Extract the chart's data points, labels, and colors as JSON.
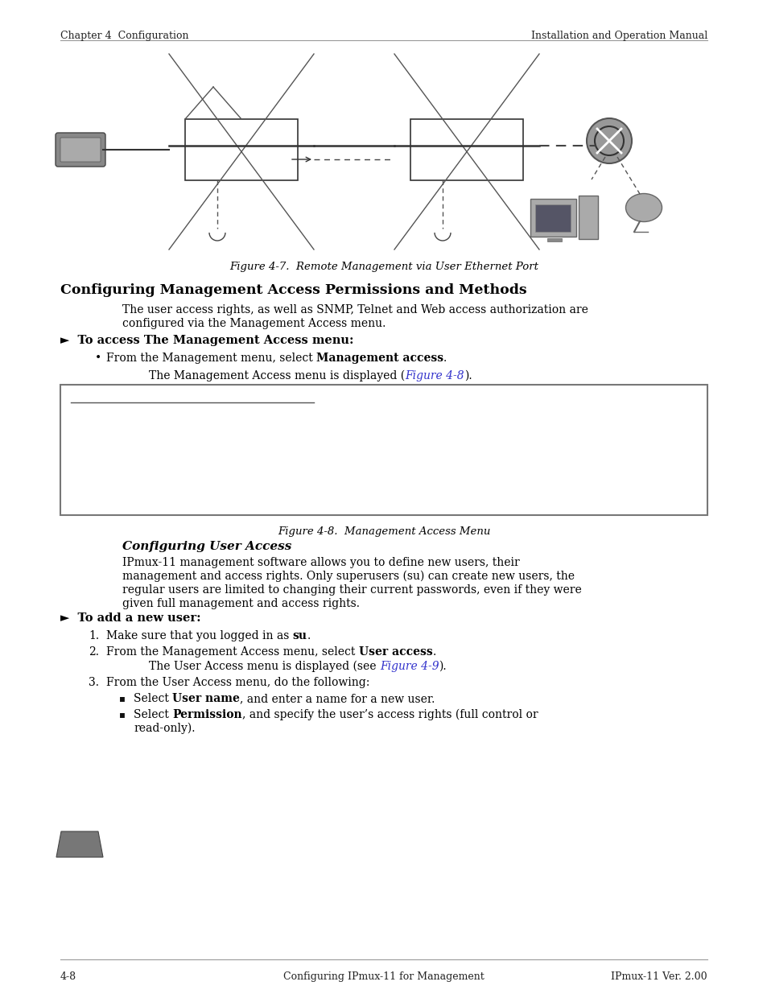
{
  "page_bg": "#ffffff",
  "header_left": "Chapter 4  Configuration",
  "header_right": "Installation and Operation Manual",
  "footer_left": "4-8",
  "footer_center": "Configuring IPmux-11 for Management",
  "footer_right": "IPmux-11 Ver. 2.00",
  "fig_caption_1": "Figure 4-7.  Remote Management via User Ethernet Port",
  "section_title": "Configuring Management Access Permissions and Methods",
  "para1_line1": "The user access rights, as well as SNMP, Telnet and Web access authorization are",
  "para1_line2": "configured via the Management Access menu.",
  "arrow_label": "►  To access The Management Access menu:",
  "fig_caption_2": "Figure 4-8.  Management Access Menu",
  "sub_section_title": "Configuring User Access",
  "para2_line1": "IPmux-11 management software allows you to define new users, their",
  "para2_line2": "management and access rights. Only superusers (su) can create new users, the",
  "para2_line3": "regular users are limited to changing their current passwords, even if they were",
  "para2_line4": "given full management and access rights.",
  "arrow_label2": "►  To add a new user:",
  "link_color": "#3333cc",
  "text_color": "#000000"
}
